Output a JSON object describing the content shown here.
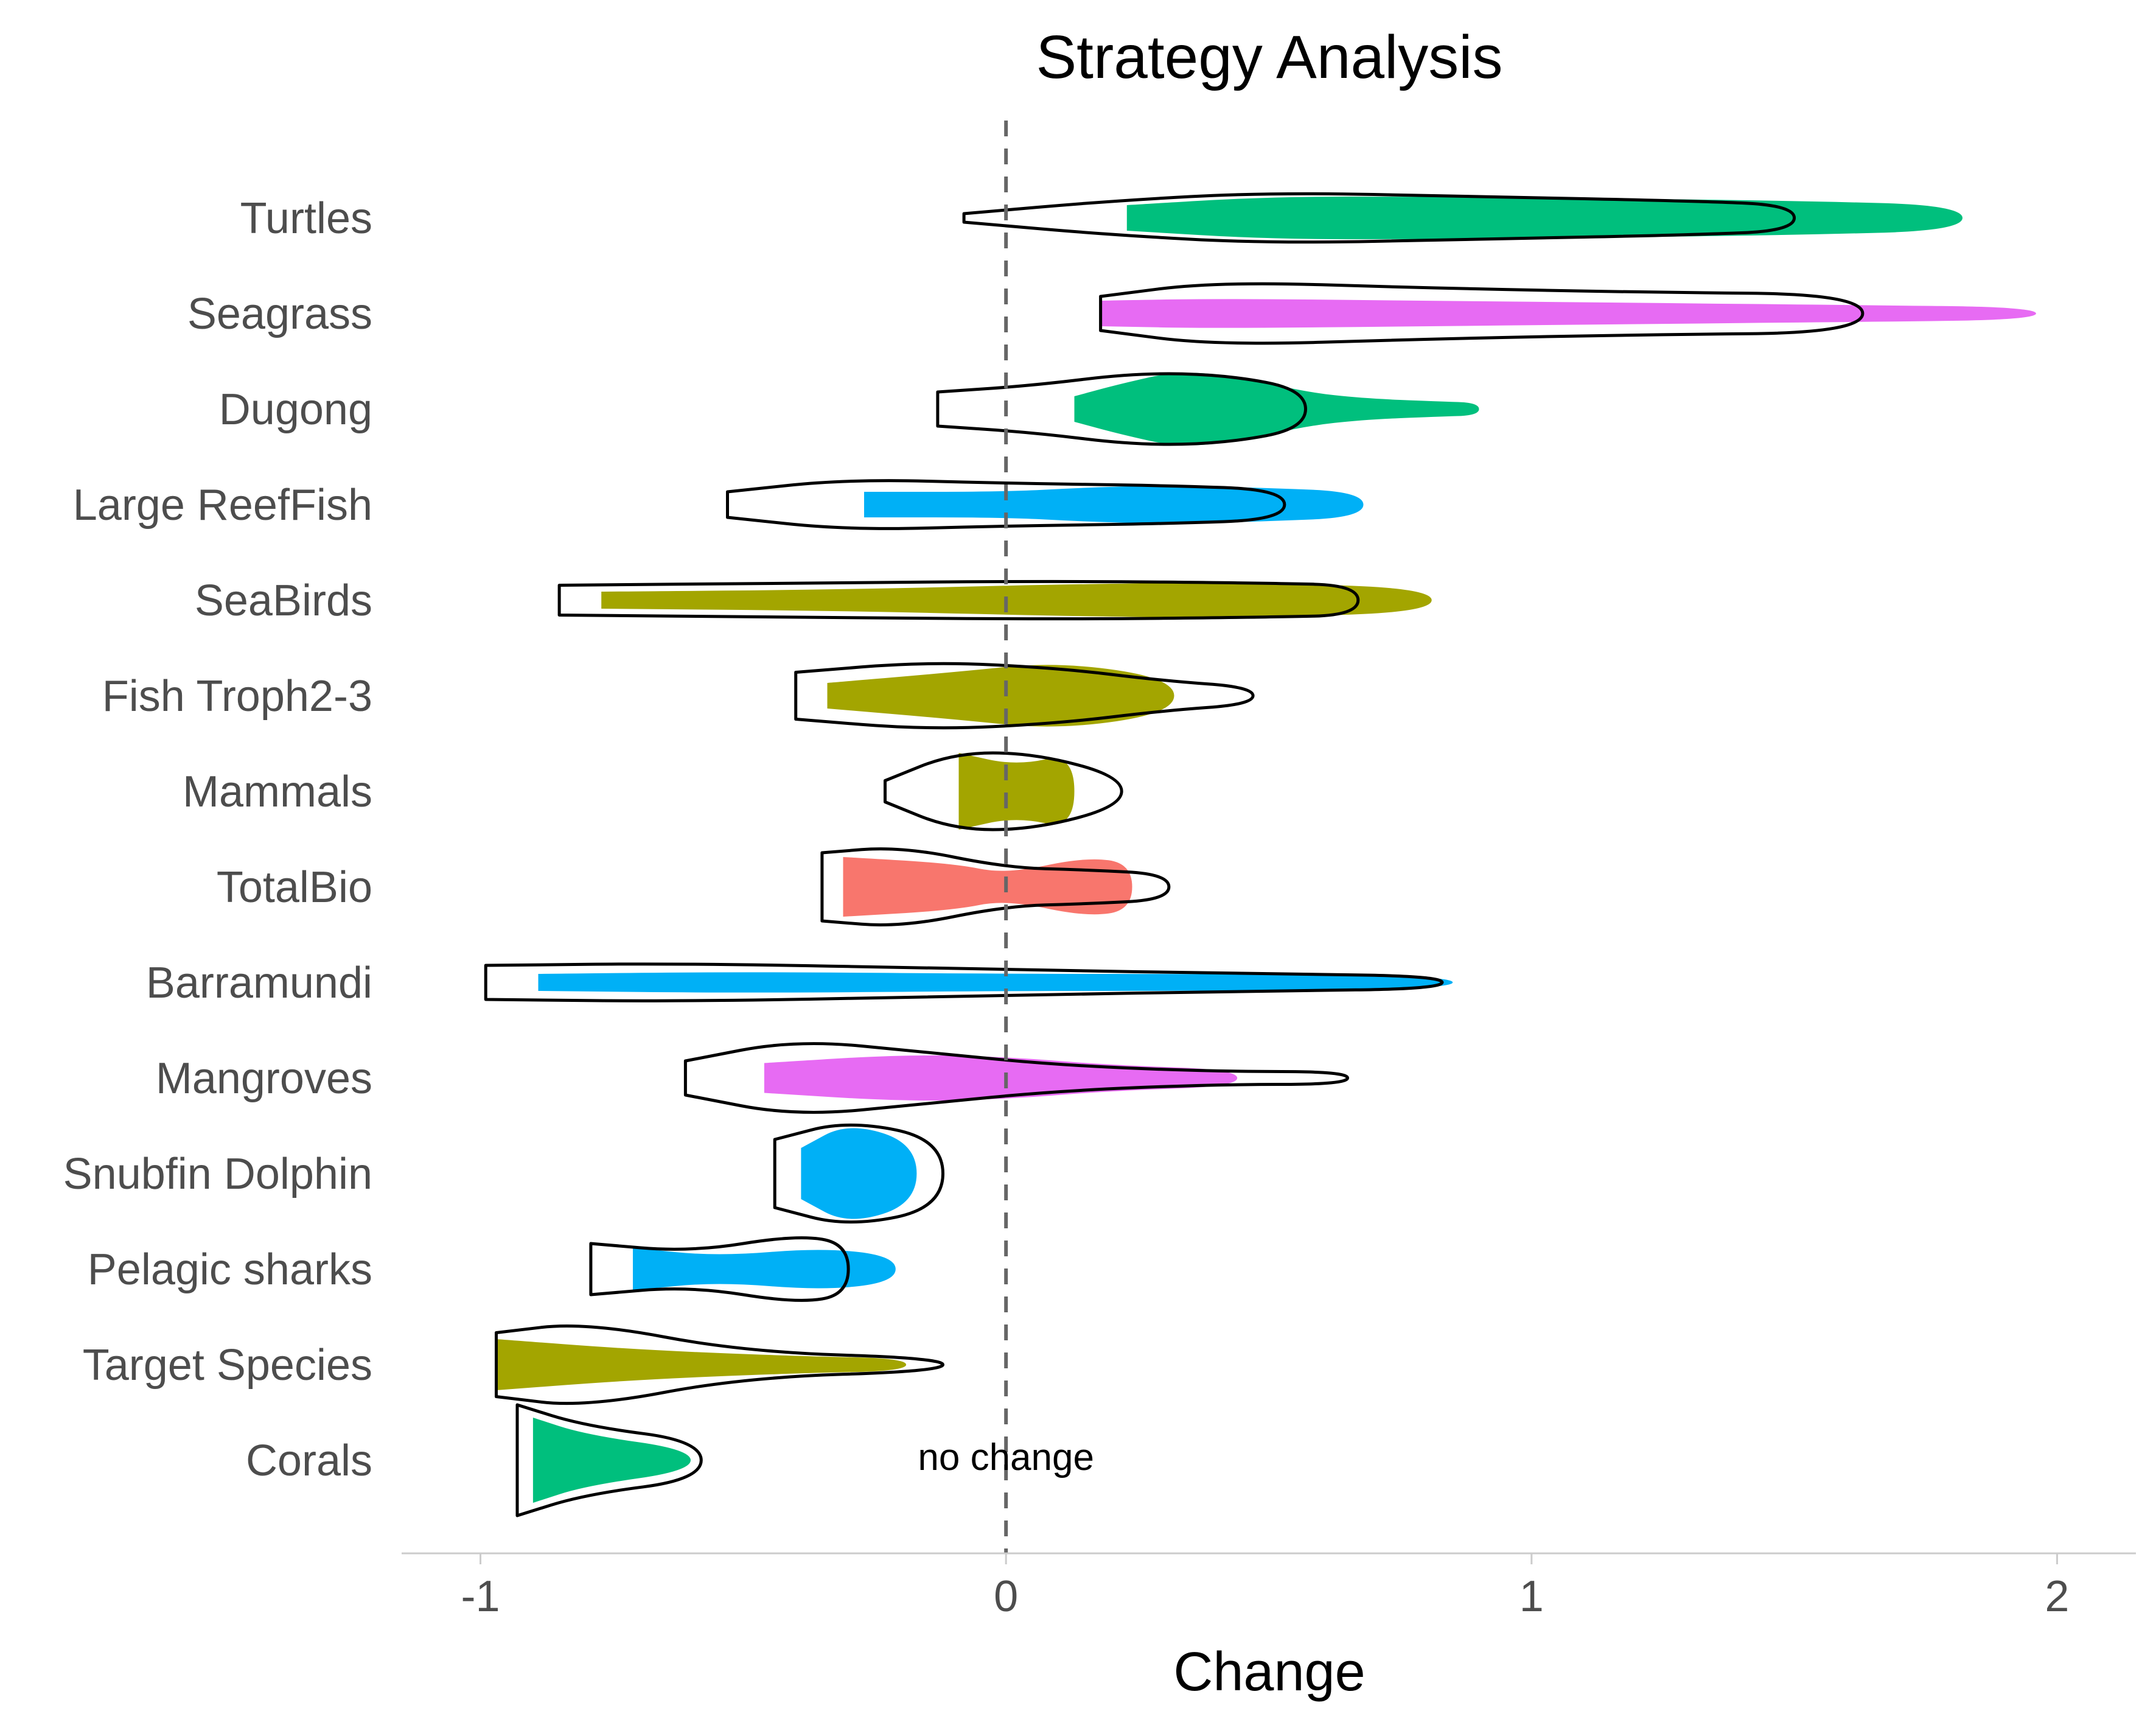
{
  "chart_data": {
    "type": "violin",
    "title": "Strategy Analysis",
    "xlabel": "Change",
    "ylabel": "",
    "xlim": [
      -1.15,
      2.15
    ],
    "xticks": [
      "-1",
      "0",
      "1",
      "2"
    ],
    "reference_line": {
      "x": 0,
      "label": "no change",
      "style": "dashed"
    },
    "grid": false,
    "legend": "none",
    "colors": {
      "green": "#00BF7D",
      "magenta": "#E76BF3",
      "blue": "#00B0F6",
      "olive": "#A3A500",
      "red": "#F8766D",
      "outline": "#000000",
      "refline": "#666666"
    },
    "categories": [
      {
        "name": "Turtles",
        "color": "green",
        "filled": {
          "min": 0.23,
          "max": 1.82,
          "profile": [
            [
              0.23,
              0.3
            ],
            [
              0.5,
              0.5
            ],
            [
              0.8,
              0.5
            ],
            [
              1.2,
              0.45
            ],
            [
              1.5,
              0.4
            ],
            [
              1.82,
              0.3
            ]
          ]
        },
        "outline": {
          "min": -0.08,
          "max": 1.5,
          "profile": [
            [
              -0.08,
              0.1
            ],
            [
              0.2,
              0.4
            ],
            [
              0.5,
              0.6
            ],
            [
              0.9,
              0.5
            ],
            [
              1.3,
              0.4
            ],
            [
              1.5,
              0.3
            ]
          ]
        }
      },
      {
        "name": "Seagrass",
        "color": "magenta",
        "filled": {
          "min": 0.18,
          "max": 1.96,
          "profile": [
            [
              0.18,
              0.3
            ],
            [
              0.4,
              0.35
            ],
            [
              0.8,
              0.3
            ],
            [
              1.2,
              0.25
            ],
            [
              1.6,
              0.2
            ],
            [
              1.96,
              0.15
            ]
          ]
        },
        "outline": {
          "min": 0.18,
          "max": 1.63,
          "profile": [
            [
              0.18,
              0.4
            ],
            [
              0.4,
              0.75
            ],
            [
              0.8,
              0.6
            ],
            [
              1.2,
              0.5
            ],
            [
              1.63,
              0.45
            ]
          ]
        }
      },
      {
        "name": "Dugong",
        "color": "green",
        "filled": {
          "min": 0.13,
          "max": 0.9,
          "profile": [
            [
              0.13,
              0.3
            ],
            [
              0.22,
              0.6
            ],
            [
              0.33,
              0.9
            ],
            [
              0.45,
              0.75
            ],
            [
              0.57,
              0.4
            ],
            [
              0.68,
              0.25
            ],
            [
              0.82,
              0.18
            ],
            [
              0.9,
              0.15
            ]
          ]
        },
        "outline": {
          "min": -0.13,
          "max": 0.57,
          "profile": [
            [
              -0.13,
              0.4
            ],
            [
              0.05,
              0.55
            ],
            [
              0.25,
              0.85
            ],
            [
              0.42,
              0.8
            ],
            [
              0.57,
              0.45
            ]
          ]
        }
      },
      {
        "name": "Large ReefFish",
        "color": "blue",
        "filled": {
          "min": -0.27,
          "max": 0.68,
          "profile": [
            [
              -0.27,
              0.3
            ],
            [
              0.0,
              0.3
            ],
            [
              0.15,
              0.4
            ],
            [
              0.3,
              0.45
            ],
            [
              0.48,
              0.4
            ],
            [
              0.68,
              0.3
            ]
          ]
        },
        "outline": {
          "min": -0.53,
          "max": 0.53,
          "profile": [
            [
              -0.53,
              0.3
            ],
            [
              -0.3,
              0.6
            ],
            [
              0.0,
              0.5
            ],
            [
              0.3,
              0.45
            ],
            [
              0.53,
              0.35
            ]
          ]
        }
      },
      {
        "name": "SeaBirds",
        "color": "olive",
        "filled": {
          "min": -0.77,
          "max": 0.81,
          "profile": [
            [
              -0.77,
              0.2
            ],
            [
              -0.3,
              0.25
            ],
            [
              0.2,
              0.4
            ],
            [
              0.55,
              0.4
            ],
            [
              0.81,
              0.25
            ]
          ]
        },
        "outline": {
          "min": -0.85,
          "max": 0.67,
          "profile": [
            [
              -0.85,
              0.35
            ],
            [
              -0.4,
              0.4
            ],
            [
              0.1,
              0.45
            ],
            [
              0.5,
              0.4
            ],
            [
              0.67,
              0.35
            ]
          ]
        }
      },
      {
        "name": "Fish Troph2-3",
        "color": "olive",
        "filled": {
          "min": -0.34,
          "max": 0.32,
          "profile": [
            [
              -0.34,
              0.3
            ],
            [
              -0.1,
              0.55
            ],
            [
              0.1,
              0.8
            ],
            [
              0.32,
              0.4
            ]
          ]
        },
        "outline": {
          "min": -0.4,
          "max": 0.47,
          "profile": [
            [
              -0.4,
              0.55
            ],
            [
              -0.15,
              0.8
            ],
            [
              0.1,
              0.65
            ],
            [
              0.3,
              0.35
            ],
            [
              0.47,
              0.2
            ]
          ]
        }
      },
      {
        "name": "Mammals",
        "color": "olive",
        "filled": {
          "min": -0.09,
          "max": 0.13,
          "profile": [
            [
              -0.09,
              0.9
            ],
            [
              0.02,
              0.6
            ],
            [
              0.13,
              0.9
            ]
          ]
        },
        "outline": {
          "min": -0.23,
          "max": 0.22,
          "profile": [
            [
              -0.23,
              0.25
            ],
            [
              -0.1,
              0.9
            ],
            [
              0.05,
              0.9
            ],
            [
              0.22,
              0.35
            ]
          ]
        }
      },
      {
        "name": "TotalBio",
        "color": "red",
        "filled": {
          "min": -0.31,
          "max": 0.24,
          "profile": [
            [
              -0.31,
              0.7
            ],
            [
              -0.1,
              0.55
            ],
            [
              0.0,
              0.3
            ],
            [
              0.15,
              0.7
            ],
            [
              0.24,
              0.55
            ]
          ]
        },
        "outline": {
          "min": -0.35,
          "max": 0.31,
          "profile": [
            [
              -0.35,
              0.8
            ],
            [
              -0.2,
              0.95
            ],
            [
              0.0,
              0.45
            ],
            [
              0.15,
              0.4
            ],
            [
              0.31,
              0.3
            ]
          ]
        }
      },
      {
        "name": "Barramundi",
        "color": "blue",
        "filled": {
          "min": -0.89,
          "max": 0.85,
          "profile": [
            [
              -0.89,
              0.2
            ],
            [
              -0.5,
              0.25
            ],
            [
              0.0,
              0.2
            ],
            [
              0.4,
              0.2
            ],
            [
              0.85,
              0.15
            ]
          ]
        },
        "outline": {
          "min": -0.99,
          "max": 0.83,
          "profile": [
            [
              -0.99,
              0.4
            ],
            [
              -0.6,
              0.45
            ],
            [
              0.0,
              0.3
            ],
            [
              0.5,
              0.2
            ],
            [
              0.83,
              0.15
            ]
          ]
        }
      },
      {
        "name": "Mangroves",
        "color": "magenta",
        "filled": {
          "min": -0.46,
          "max": 0.44,
          "profile": [
            [
              -0.46,
              0.35
            ],
            [
              -0.2,
              0.55
            ],
            [
              0.0,
              0.5
            ],
            [
              0.2,
              0.3
            ],
            [
              0.44,
              0.2
            ]
          ]
        },
        "outline": {
          "min": -0.61,
          "max": 0.65,
          "profile": [
            [
              -0.61,
              0.4
            ],
            [
              -0.4,
              0.9
            ],
            [
              -0.15,
              0.6
            ],
            [
              0.1,
              0.3
            ],
            [
              0.4,
              0.15
            ],
            [
              0.65,
              0.15
            ]
          ]
        }
      },
      {
        "name": "Snubfin Dolphin",
        "color": "blue",
        "filled": {
          "min": -0.39,
          "max": -0.17,
          "profile": [
            [
              -0.39,
              0.6
            ],
            [
              -0.3,
              1.2
            ],
            [
              -0.17,
              0.7
            ]
          ]
        },
        "outline": {
          "min": -0.44,
          "max": -0.12,
          "profile": [
            [
              -0.44,
              0.8
            ],
            [
              -0.3,
              1.25
            ],
            [
              -0.12,
              0.8
            ]
          ]
        }
      },
      {
        "name": "Pelagic sharks",
        "color": "blue",
        "filled": {
          "min": -0.71,
          "max": -0.21,
          "profile": [
            [
              -0.71,
              0.5
            ],
            [
              -0.55,
              0.3
            ],
            [
              -0.35,
              0.5
            ],
            [
              -0.21,
              0.3
            ]
          ]
        },
        "outline": {
          "min": -0.79,
          "max": -0.3,
          "profile": [
            [
              -0.79,
              0.6
            ],
            [
              -0.6,
              0.4
            ],
            [
              -0.4,
              0.8
            ],
            [
              -0.3,
              0.6
            ]
          ]
        }
      },
      {
        "name": "Target Species",
        "color": "olive",
        "filled": {
          "min": -0.97,
          "max": -0.19,
          "profile": [
            [
              -0.97,
              0.6
            ],
            [
              -0.7,
              0.35
            ],
            [
              -0.4,
              0.2
            ],
            [
              -0.19,
              0.15
            ]
          ]
        },
        "outline": {
          "min": -0.97,
          "max": -0.12,
          "profile": [
            [
              -0.97,
              0.75
            ],
            [
              -0.8,
              1.0
            ],
            [
              -0.5,
              0.3
            ],
            [
              -0.12,
              0.15
            ]
          ]
        }
      },
      {
        "name": "Corals",
        "color": "green",
        "filled": {
          "min": -0.9,
          "max": -0.6,
          "profile": [
            [
              -0.9,
              1.0
            ],
            [
              -0.8,
              0.6
            ],
            [
              -0.6,
              0.25
            ]
          ]
        },
        "outline": {
          "min": -0.93,
          "max": -0.58,
          "profile": [
            [
              -0.93,
              1.3
            ],
            [
              -0.8,
              0.8
            ],
            [
              -0.58,
              0.45
            ]
          ]
        }
      }
    ]
  }
}
